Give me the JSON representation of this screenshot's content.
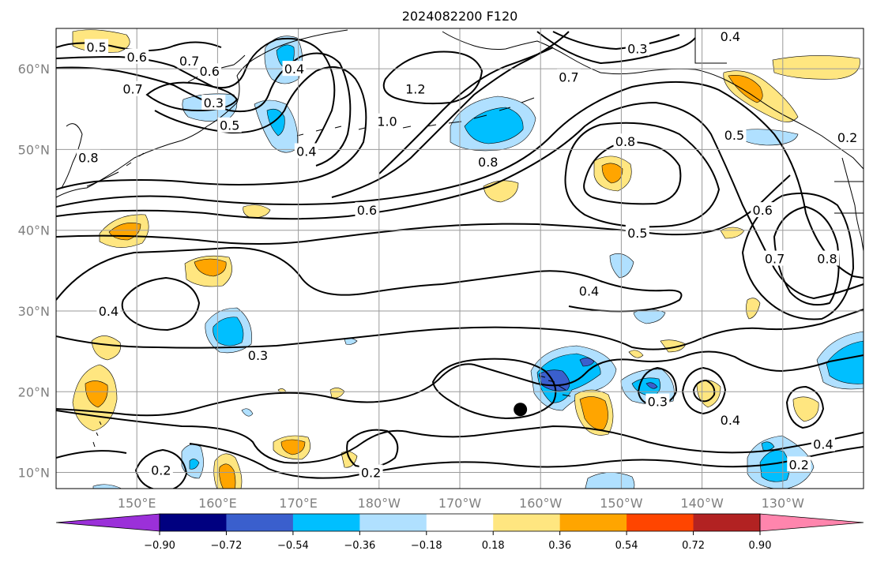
{
  "title": "2024082200 F120",
  "map": {
    "lon_min": 140,
    "lon_max": 240,
    "lat_min": 8,
    "lat_max": 65,
    "lat_ticks": [
      {
        "value": 60,
        "label": "60°N"
      },
      {
        "value": 50,
        "label": "50°N"
      },
      {
        "value": 40,
        "label": "40°N"
      },
      {
        "value": 30,
        "label": "30°N"
      },
      {
        "value": 20,
        "label": "20°N"
      },
      {
        "value": 10,
        "label": "10°N"
      }
    ],
    "lon_ticks": [
      {
        "value": 150,
        "label": "150°E"
      },
      {
        "value": 160,
        "label": "160°E"
      },
      {
        "value": 170,
        "label": "170°E"
      },
      {
        "value": 180,
        "label": "180°W"
      },
      {
        "value": 190,
        "label": "170°W"
      },
      {
        "value": 200,
        "label": "160°W"
      },
      {
        "value": 210,
        "label": "150°W"
      },
      {
        "value": 220,
        "label": "140°W"
      },
      {
        "value": 230,
        "label": "130°W"
      }
    ],
    "marker": {
      "name": "storm-position",
      "lon": 197.5,
      "lat": 17.8
    },
    "contour_labels": [
      {
        "text": "0.5",
        "lon": 145,
        "lat": 62.7
      },
      {
        "text": "0.6",
        "lon": 150,
        "lat": 61.5
      },
      {
        "text": "0.7",
        "lon": 156.5,
        "lat": 61
      },
      {
        "text": "0.6",
        "lon": 159,
        "lat": 59.7
      },
      {
        "text": "0.7",
        "lon": 149.5,
        "lat": 57.5
      },
      {
        "text": "0.3",
        "lon": 159.5,
        "lat": 55.8
      },
      {
        "text": "0.5",
        "lon": 161.5,
        "lat": 53
      },
      {
        "text": "0.4",
        "lon": 169.5,
        "lat": 60
      },
      {
        "text": "0.4",
        "lon": 171,
        "lat": 49.8
      },
      {
        "text": "0.8",
        "lon": 144,
        "lat": 49
      },
      {
        "text": "1.2",
        "lon": 184.5,
        "lat": 57.5
      },
      {
        "text": "1.0",
        "lon": 181,
        "lat": 53.5
      },
      {
        "text": "0.8",
        "lon": 193.5,
        "lat": 48.5
      },
      {
        "text": "0.8",
        "lon": 210.5,
        "lat": 51
      },
      {
        "text": "0.3",
        "lon": 212,
        "lat": 62.5
      },
      {
        "text": "0.7",
        "lon": 203.5,
        "lat": 59
      },
      {
        "text": "0.6",
        "lon": 178.5,
        "lat": 42.5
      },
      {
        "text": "0.5",
        "lon": 212,
        "lat": 39.7
      },
      {
        "text": "0.4",
        "lon": 206,
        "lat": 32.5
      },
      {
        "text": "0.4",
        "lon": 223.5,
        "lat": 64
      },
      {
        "text": "0.5",
        "lon": 224,
        "lat": 51.8
      },
      {
        "text": "0.2",
        "lon": 238,
        "lat": 51.5
      },
      {
        "text": "0.6",
        "lon": 227.5,
        "lat": 42.5
      },
      {
        "text": "0.7",
        "lon": 229,
        "lat": 36.5
      },
      {
        "text": "0.8",
        "lon": 235.5,
        "lat": 36.5
      },
      {
        "text": "0.4",
        "lon": 146.5,
        "lat": 30
      },
      {
        "text": "0.3",
        "lon": 165,
        "lat": 24.5
      },
      {
        "text": "0.3",
        "lon": 214.5,
        "lat": 18.8
      },
      {
        "text": "0.4",
        "lon": 223.5,
        "lat": 16.5
      },
      {
        "text": "0.4",
        "lon": 235,
        "lat": 13.5
      },
      {
        "text": "0.2",
        "lon": 232,
        "lat": 11
      },
      {
        "text": "0.2",
        "lon": 153,
        "lat": 10.3
      },
      {
        "text": "0.2",
        "lon": 179,
        "lat": 10
      }
    ]
  },
  "colorbar": {
    "levels": [
      "−0.90",
      "−0.72",
      "−0.54",
      "−0.36",
      "−0.18",
      "0.18",
      "0.36",
      "0.54",
      "0.72",
      "0.90"
    ],
    "colors": [
      "#9b30d9",
      "#000080",
      "#3a5fcd",
      "#00bfff",
      "#b0e0ff",
      "#ffffff",
      "#ffe680",
      "#ffa500",
      "#ff4500",
      "#b22222",
      "#ff85ad"
    ]
  }
}
